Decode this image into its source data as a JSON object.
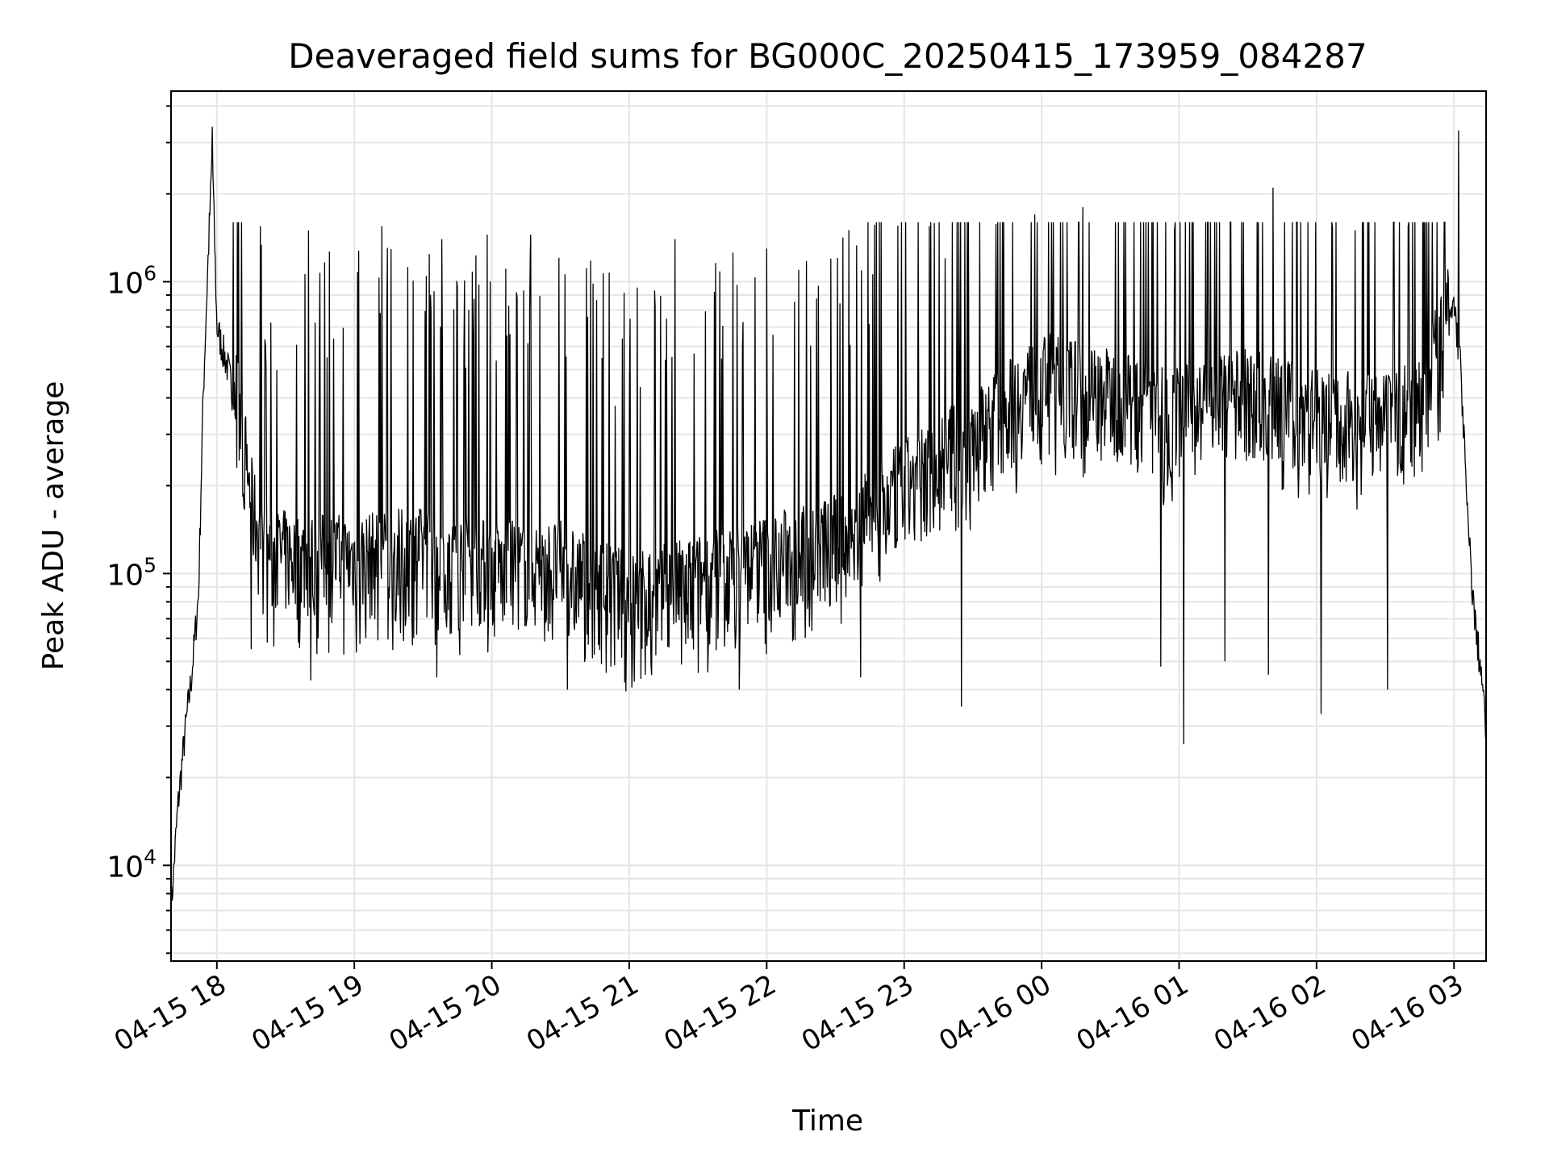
{
  "chart_data": {
    "type": "line",
    "title": "Deaveraged field sums for BG000C_20250415_173959_084287",
    "xlabel": "Time",
    "ylabel": "Peak ADU - average",
    "yscale": "log",
    "xlim": [
      "2025-04-15 17:40",
      "2025-04-16 03:14"
    ],
    "ylim": [
      4700,
      4500000
    ],
    "grid": true,
    "line_color": "#000000",
    "grid_color": "#e5e5e5",
    "xticks": [
      {
        "value": "2025-04-15 18:00",
        "label": "04-15 18"
      },
      {
        "value": "2025-04-15 19:00",
        "label": "04-15 19"
      },
      {
        "value": "2025-04-15 20:00",
        "label": "04-15 20"
      },
      {
        "value": "2025-04-15 21:00",
        "label": "04-15 21"
      },
      {
        "value": "2025-04-15 22:00",
        "label": "04-15 22"
      },
      {
        "value": "2025-04-15 23:00",
        "label": "04-15 23"
      },
      {
        "value": "2025-04-16 00:00",
        "label": "04-16 00"
      },
      {
        "value": "2025-04-16 01:00",
        "label": "04-16 01"
      },
      {
        "value": "2025-04-16 02:00",
        "label": "04-16 02"
      },
      {
        "value": "2025-04-16 03:00",
        "label": "04-16 03"
      }
    ],
    "yticks": [
      {
        "value": 10000,
        "base": "10",
        "exp": "4"
      },
      {
        "value": 100000,
        "base": "10",
        "exp": "5"
      },
      {
        "value": 1000000,
        "base": "10",
        "exp": "6"
      }
    ],
    "series": [
      {
        "x": [
          "2025-04-15 17:40",
          "2025-04-15 17:43",
          "2025-04-15 17:46",
          "2025-04-15 17:49",
          "2025-04-15 17:52",
          "2025-04-15 17:54",
          "2025-04-15 17:56",
          "2025-04-15 17:58",
          "2025-04-15 18:00",
          "2025-04-15 18:05",
          "2025-04-15 18:10",
          "2025-04-15 18:15",
          "2025-04-15 18:20",
          "2025-04-15 18:40",
          "2025-04-15 19:00",
          "2025-04-15 19:30",
          "2025-04-15 20:00",
          "2025-04-15 20:30",
          "2025-04-15 21:00",
          "2025-04-15 21:30",
          "2025-04-15 22:00",
          "2025-04-15 22:30",
          "2025-04-15 23:00",
          "2025-04-15 23:30",
          "2025-04-16 00:00",
          "2025-04-16 00:30",
          "2025-04-16 01:00",
          "2025-04-16 01:30",
          "2025-04-16 02:00",
          "2025-04-16 02:30",
          "2025-04-16 02:45",
          "2025-04-16 02:55",
          "2025-04-16 03:00",
          "2025-04-16 03:03",
          "2025-04-16 03:06",
          "2025-04-16 03:09",
          "2025-04-16 03:12",
          "2025-04-16 03:14"
        ],
        "values": [
          7000,
          16000,
          28000,
          45000,
          85000,
          400000,
          1100000,
          2800000,
          700000,
          500000,
          300000,
          150000,
          100000,
          95000,
          95000,
          100000,
          90000,
          90000,
          70000,
          80000,
          95000,
          110000,
          170000,
          250000,
          400000,
          350000,
          300000,
          350000,
          300000,
          280000,
          350000,
          550000,
          850000,
          500000,
          150000,
          70000,
          45000,
          28000
        ],
        "spikes": [
          [
            "2025-04-15 17:58",
            3400000
          ],
          [
            "2025-04-15 18:19",
            1550000
          ],
          [
            "2025-04-15 18:40",
            1500000
          ],
          [
            "2025-04-15 19:12",
            1550000
          ],
          [
            "2025-04-15 19:58",
            1450000
          ],
          [
            "2025-04-15 20:17",
            1450000
          ],
          [
            "2025-04-15 21:20",
            1400000
          ],
          [
            "2025-04-15 22:00",
            1300000
          ],
          [
            "2025-04-15 22:28",
            1200000
          ],
          [
            "2025-04-15 23:11",
            1550000
          ],
          [
            "2025-04-15 23:57",
            1700000
          ],
          [
            "2025-04-16 00:18",
            1800000
          ],
          [
            "2025-04-16 00:58",
            1500000
          ],
          [
            "2025-04-16 01:41",
            2100000
          ],
          [
            "2025-04-16 02:40",
            1550000
          ],
          [
            "2025-04-16 03:02",
            3300000
          ]
        ],
        "dips": [
          [
            "2025-04-15 18:15",
            55000
          ],
          [
            "2025-04-15 18:41",
            43000
          ],
          [
            "2025-04-15 19:36",
            44000
          ],
          [
            "2025-04-15 20:33",
            40000
          ],
          [
            "2025-04-15 20:52",
            48000
          ],
          [
            "2025-04-15 21:07",
            45000
          ],
          [
            "2025-04-15 21:48",
            40000
          ],
          [
            "2025-04-15 22:41",
            44000
          ],
          [
            "2025-04-15 23:25",
            35000
          ],
          [
            "2025-04-16 00:52",
            48000
          ],
          [
            "2025-04-16 01:02",
            26000
          ],
          [
            "2025-04-16 01:20",
            50000
          ],
          [
            "2025-04-16 01:39",
            45000
          ],
          [
            "2025-04-16 02:02",
            33000
          ],
          [
            "2025-04-16 02:31",
            40000
          ]
        ]
      }
    ]
  }
}
